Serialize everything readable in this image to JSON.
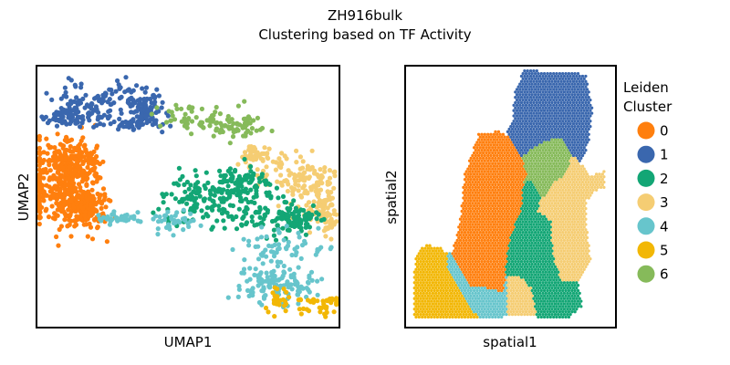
{
  "figure": {
    "title_line1": "ZH916bulk",
    "title_line2": "Clustering based on TF Activity"
  },
  "legend": {
    "title_line1": "Leiden",
    "title_line2": "Cluster",
    "entries": [
      {
        "label": "0",
        "color": "#ff7f0e"
      },
      {
        "label": "1",
        "color": "#3a67ae"
      },
      {
        "label": "2",
        "color": "#13a675"
      },
      {
        "label": "3",
        "color": "#f5cd73"
      },
      {
        "label": "4",
        "color": "#67c5cc"
      },
      {
        "label": "5",
        "color": "#f2b705"
      },
      {
        "label": "6",
        "color": "#86ba5a"
      }
    ]
  },
  "chart_data": [
    {
      "type": "scatter",
      "title": "",
      "xlabel": "UMAP1",
      "ylabel": "UMAP2",
      "xlim": [
        0,
        100
      ],
      "ylim": [
        0,
        100
      ],
      "ticks": "none",
      "grid": false,
      "series": [
        {
          "name": "0",
          "color": "#ff7f0e",
          "regions": [
            [
              6,
              55,
              6,
              8
            ],
            [
              12,
              63,
              5,
              5
            ],
            [
              16,
              46,
              4,
              4
            ]
          ],
          "count": 650
        },
        {
          "name": "1",
          "color": "#3a67ae",
          "regions": [
            [
              14,
              85,
              5,
              4
            ],
            [
              27,
              87,
              6,
              4
            ],
            [
              10,
              81,
              3,
              2
            ],
            [
              36,
              83,
              3,
              4
            ],
            [
              32,
              79,
              6,
              2
            ]
          ],
          "count": 300
        },
        {
          "name": "6",
          "color": "#86ba5a",
          "regions": [
            [
              50,
              80,
              5,
              3
            ],
            [
              60,
              78,
              5,
              3
            ],
            [
              68,
              76,
              4,
              2
            ]
          ],
          "count": 110
        },
        {
          "name": "3",
          "color": "#f5cd73",
          "regions": [
            [
              72,
              66,
              3,
              2
            ],
            [
              86,
              56,
              6,
              6
            ],
            [
              80,
              60,
              5,
              5
            ],
            [
              92,
              46,
              3,
              4
            ],
            [
              96,
              42,
              2,
              4
            ],
            [
              94,
              56,
              3,
              3
            ]
          ],
          "count": 240
        },
        {
          "name": "2",
          "color": "#13a675",
          "regions": [
            [
              61,
              51,
              8,
              5
            ],
            [
              52,
              47,
              7,
              5
            ],
            [
              76,
              43,
              6,
              4
            ],
            [
              86,
              41,
              4,
              3
            ],
            [
              68,
              55,
              4,
              3
            ]
          ],
          "count": 360
        },
        {
          "name": "4",
          "color": "#67c5cc",
          "regions": [
            [
              84,
              32,
              8,
              3
            ],
            [
              76,
              26,
              6,
              5
            ],
            [
              79,
              19,
              6,
              3
            ],
            [
              75,
              14,
              5,
              3
            ],
            [
              85,
              15,
              3,
              3
            ],
            [
              27,
              42,
              3,
              1
            ],
            [
              43,
              41,
              4,
              2
            ]
          ],
          "count": 260
        },
        {
          "name": "5",
          "color": "#f2b705",
          "regions": [
            [
              88,
              8,
              5,
              2
            ],
            [
              95,
              10,
              3,
              1
            ],
            [
              80,
              10,
              2,
              2
            ]
          ],
          "count": 70
        }
      ]
    },
    {
      "type": "scatter",
      "title": "",
      "xlabel": "spatial1",
      "ylabel": "spatial2",
      "xlim": [
        0,
        100
      ],
      "ylim": [
        0,
        100
      ],
      "ticks": "none",
      "grid": false,
      "cells": [
        {
          "name": "0",
          "color": "#ff7f0e",
          "polygon": [
            [
              28,
              58
            ],
            [
              26,
              40
            ],
            [
              22,
              28
            ],
            [
              30,
              16
            ],
            [
              40,
              15
            ],
            [
              44,
              14
            ],
            [
              47,
              14
            ],
            [
              48,
              25
            ],
            [
              50,
              35
            ],
            [
              55,
              45
            ],
            [
              56,
              55
            ],
            [
              58,
              58
            ],
            [
              55,
              65
            ],
            [
              50,
              72
            ],
            [
              45,
              75
            ],
            [
              35,
              74
            ]
          ]
        },
        {
          "name": "1",
          "color": "#3a67ae",
          "polygon": [
            [
              48,
              76
            ],
            [
              51,
              78
            ],
            [
              52,
              90
            ],
            [
              55,
              96
            ],
            [
              57,
              99
            ],
            [
              63,
              98
            ],
            [
              70,
              98
            ],
            [
              78,
              98
            ],
            [
              86,
              96
            ],
            [
              89,
              83
            ],
            [
              87,
              70
            ],
            [
              83,
              63
            ],
            [
              79,
              66
            ],
            [
              73,
              73
            ],
            [
              63,
              70
            ],
            [
              55,
              65
            ],
            [
              50,
              72
            ]
          ]
        },
        {
          "name": "6",
          "color": "#86ba5a",
          "polygon": [
            [
              55,
              65
            ],
            [
              63,
              70
            ],
            [
              73,
              73
            ],
            [
              79,
              66
            ],
            [
              76,
              58
            ],
            [
              70,
              55
            ],
            [
              66,
              50
            ],
            [
              64,
              50
            ],
            [
              63,
              53
            ],
            [
              59,
              56
            ],
            [
              56,
              55
            ]
          ]
        },
        {
          "name": "3",
          "color": "#f5cd73",
          "polygon": [
            [
              66,
              50
            ],
            [
              70,
              55
            ],
            [
              76,
              58
            ],
            [
              79,
              66
            ],
            [
              83,
              63
            ],
            [
              88,
              58
            ],
            [
              95,
              60
            ],
            [
              95,
              53
            ],
            [
              89,
              52
            ],
            [
              86,
              48
            ],
            [
              86,
              40
            ],
            [
              88,
              25
            ],
            [
              82,
              18
            ],
            [
              74,
              18
            ],
            [
              70,
              28
            ],
            [
              69,
              41
            ],
            [
              63,
              44
            ],
            [
              64,
              50
            ]
          ]
        },
        {
          "name": "3",
          "color": "#f5cd73",
          "polygon": [
            [
              48,
              20
            ],
            [
              54,
              20
            ],
            [
              60,
              15
            ],
            [
              62,
              5
            ],
            [
              48,
              5
            ],
            [
              48,
              12
            ]
          ]
        },
        {
          "name": "2",
          "color": "#13a675",
          "polygon": [
            [
              38,
              31
            ],
            [
              45,
              35
            ],
            [
              50,
              35
            ],
            [
              55,
              45
            ],
            [
              56,
              55
            ],
            [
              59,
              56
            ],
            [
              63,
              53
            ],
            [
              64,
              50
            ],
            [
              63,
              44
            ],
            [
              69,
              41
            ],
            [
              70,
              28
            ],
            [
              74,
              18
            ],
            [
              82,
              18
            ],
            [
              84,
              8
            ],
            [
              78,
              4
            ],
            [
              62,
              4
            ],
            [
              62,
              5
            ],
            [
              60,
              15
            ],
            [
              54,
              20
            ],
            [
              48,
              20
            ],
            [
              46,
              27
            ]
          ]
        },
        {
          "name": "4",
          "color": "#67c5cc",
          "polygon": [
            [
              20,
              28
            ],
            [
              28,
              30
            ],
            [
              38,
              31
            ],
            [
              46,
              27
            ],
            [
              48,
              20
            ],
            [
              48,
              12
            ],
            [
              48,
              5
            ],
            [
              46,
              4
            ],
            [
              35,
              4
            ],
            [
              30,
              8
            ],
            [
              24,
              18
            ],
            [
              20,
              22
            ]
          ]
        },
        {
          "name": "5",
          "color": "#f2b705",
          "polygon": [
            [
              7,
              30
            ],
            [
              10,
              32
            ],
            [
              18,
              30
            ],
            [
              20,
              28
            ],
            [
              20,
              22
            ],
            [
              24,
              18
            ],
            [
              30,
              8
            ],
            [
              35,
              4
            ],
            [
              46,
              4
            ],
            [
              4,
              4
            ],
            [
              4,
              20
            ],
            [
              5,
              26
            ]
          ]
        }
      ]
    }
  ]
}
